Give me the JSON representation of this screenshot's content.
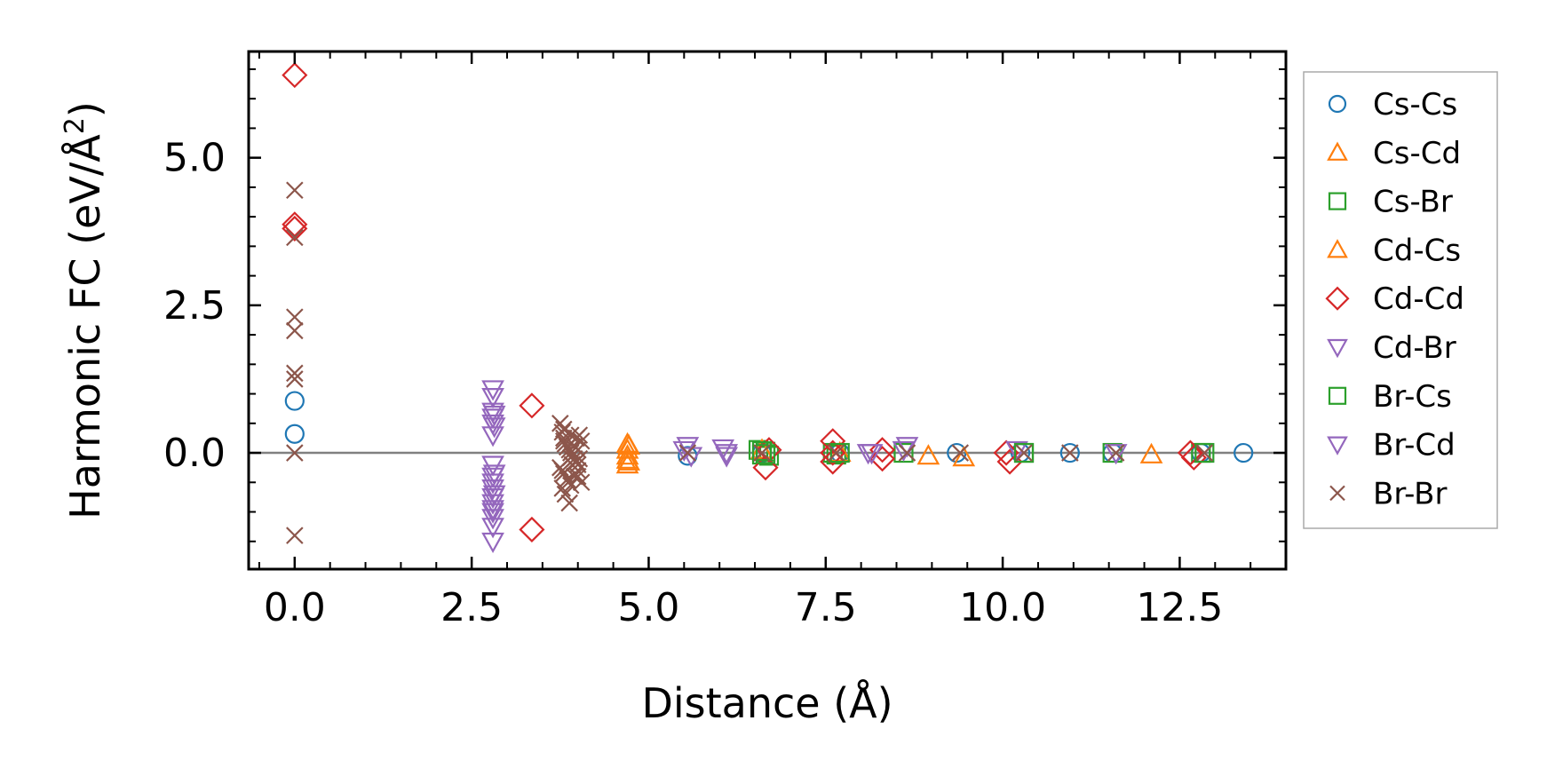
{
  "chart_data": {
    "type": "scatter",
    "title": "",
    "xlabel": "Distance (Å)",
    "ylabel": "Harmonic FC (eV/Å²)",
    "ylabel_main": "Harmonic FC (eV/Å",
    "ylabel_sup": "2",
    "ylabel_close": ")",
    "xlim": [
      -0.65,
      14.0
    ],
    "ylim": [
      -1.97,
      6.8
    ],
    "xticks": [
      0.0,
      2.5,
      5.0,
      7.5,
      10.0,
      12.5
    ],
    "xtick_labels": [
      "0.0",
      "2.5",
      "5.0",
      "7.5",
      "10.0",
      "12.5"
    ],
    "yticks": [
      0.0,
      2.5,
      5.0
    ],
    "ytick_labels": [
      "0.0",
      "2.5",
      "5.0"
    ],
    "zero_line": 0,
    "legend_position": "right",
    "series": [
      {
        "name": "Cs-Cs",
        "marker": "circle",
        "color": "#1f77b4",
        "x": [
          0,
          0,
          5.55,
          6.6,
          7.7,
          9.35,
          10.25,
          10.95,
          11.55,
          12.8,
          13.4
        ],
        "y": [
          0.88,
          0.32,
          -0.05,
          0.0,
          0.0,
          0.0,
          0.0,
          0.0,
          0.0,
          0.0,
          0.0
        ]
      },
      {
        "name": "Cs-Cd",
        "marker": "triangle-up",
        "color": "#ff7f0e",
        "x": [
          4.7,
          4.7,
          4.7,
          4.7,
          4.7,
          8.95,
          9.45,
          12.1
        ],
        "y": [
          0.15,
          0.05,
          -0.05,
          -0.12,
          -0.2,
          -0.05,
          -0.08,
          -0.03
        ]
      },
      {
        "name": "Cs-Br",
        "marker": "square",
        "color": "#2ca02c",
        "x": [
          6.55,
          6.6,
          6.65,
          6.7,
          7.6,
          7.65,
          8.6,
          10.3,
          11.55,
          12.8
        ],
        "y": [
          0.05,
          -0.03,
          0.02,
          -0.05,
          0.0,
          -0.03,
          0.0,
          0.0,
          0.0,
          0.0
        ]
      },
      {
        "name": "Cd-Cs",
        "marker": "triangle-up",
        "color": "#ff7f0e",
        "x": [
          4.72,
          4.72,
          6.6,
          7.7
        ],
        "y": [
          0.12,
          -0.15,
          0.05,
          0.0
        ]
      },
      {
        "name": "Cd-Cd",
        "marker": "diamond",
        "color": "#d62728",
        "x": [
          0,
          0,
          0,
          3.35,
          3.35,
          6.65,
          6.7,
          7.6,
          7.6,
          7.6,
          8.3,
          8.3,
          10.05,
          10.1,
          12.65,
          12.7
        ],
        "y": [
          6.4,
          3.87,
          3.8,
          0.8,
          -1.3,
          -0.25,
          0.05,
          0.2,
          0.0,
          -0.15,
          0.05,
          -0.1,
          0.0,
          -0.15,
          0.0,
          -0.08
        ]
      },
      {
        "name": "Cd-Br",
        "marker": "triangle-down",
        "color": "#9467bd",
        "x": [
          2.8,
          2.8,
          2.8,
          2.8,
          2.8,
          2.8,
          2.8,
          2.8,
          2.8,
          2.8,
          2.8,
          2.8,
          2.8,
          2.8,
          2.8,
          2.8,
          2.8,
          5.55,
          5.6,
          6.05,
          6.1,
          8.15,
          8.65,
          10.2,
          11.6
        ],
        "y": [
          1.08,
          0.95,
          0.7,
          0.6,
          0.5,
          0.3,
          -0.2,
          -0.4,
          -0.5,
          -0.6,
          -0.75,
          -0.85,
          -1.0,
          -1.1,
          -1.25,
          -1.5,
          -0.95,
          0.12,
          -0.05,
          0.08,
          -0.05,
          0.0,
          0.12,
          0.05,
          0.0
        ]
      },
      {
        "name": "Br-Cs",
        "marker": "square",
        "color": "#2ca02c",
        "x": [
          6.6,
          6.65,
          7.7,
          10.3,
          12.85
        ],
        "y": [
          0.03,
          -0.02,
          0.0,
          0.0,
          0.0
        ]
      },
      {
        "name": "Br-Cd",
        "marker": "triangle-down",
        "color": "#9467bd",
        "x": [
          2.82,
          2.82,
          2.82,
          2.82,
          5.5,
          6.1,
          8.1,
          8.6
        ],
        "y": [
          0.65,
          0.45,
          -0.35,
          -0.7,
          0.05,
          0.0,
          0.0,
          0.05
        ]
      },
      {
        "name": "Br-Br",
        "marker": "x",
        "color": "#8c564b",
        "x": [
          0,
          0,
          0,
          0,
          0,
          0,
          0,
          0,
          3.75,
          3.78,
          3.8,
          3.82,
          3.85,
          3.88,
          3.9,
          3.92,
          3.95,
          3.98,
          4.0,
          4.02,
          4.05,
          3.75,
          3.78,
          3.8,
          3.85,
          3.9,
          3.95,
          4.0,
          4.05,
          3.8,
          3.85,
          3.9,
          3.95,
          4.0,
          3.78,
          3.82,
          3.88,
          3.92,
          3.98,
          4.02,
          3.8,
          3.9,
          4.0,
          5.55,
          6.6,
          7.65,
          8.65,
          9.4,
          10.3,
          10.95,
          11.6,
          12.85
        ],
        "y": [
          4.45,
          3.65,
          2.3,
          2.07,
          1.35,
          1.25,
          -1.4,
          0.0,
          0.5,
          0.35,
          0.25,
          0.15,
          0.1,
          0.05,
          0.0,
          -0.05,
          -0.1,
          -0.15,
          -0.2,
          0.3,
          0.2,
          -0.25,
          -0.3,
          -0.35,
          -0.45,
          -0.55,
          -0.4,
          -0.3,
          -0.5,
          0.2,
          0.1,
          -0.08,
          0.12,
          0.05,
          -0.6,
          -0.7,
          -0.85,
          -0.2,
          0.25,
          -0.1,
          0.4,
          0.3,
          -0.4,
          0.0,
          0.0,
          0.0,
          0.0,
          0.0,
          0.0,
          0.0,
          0.0,
          0.0
        ]
      }
    ]
  }
}
